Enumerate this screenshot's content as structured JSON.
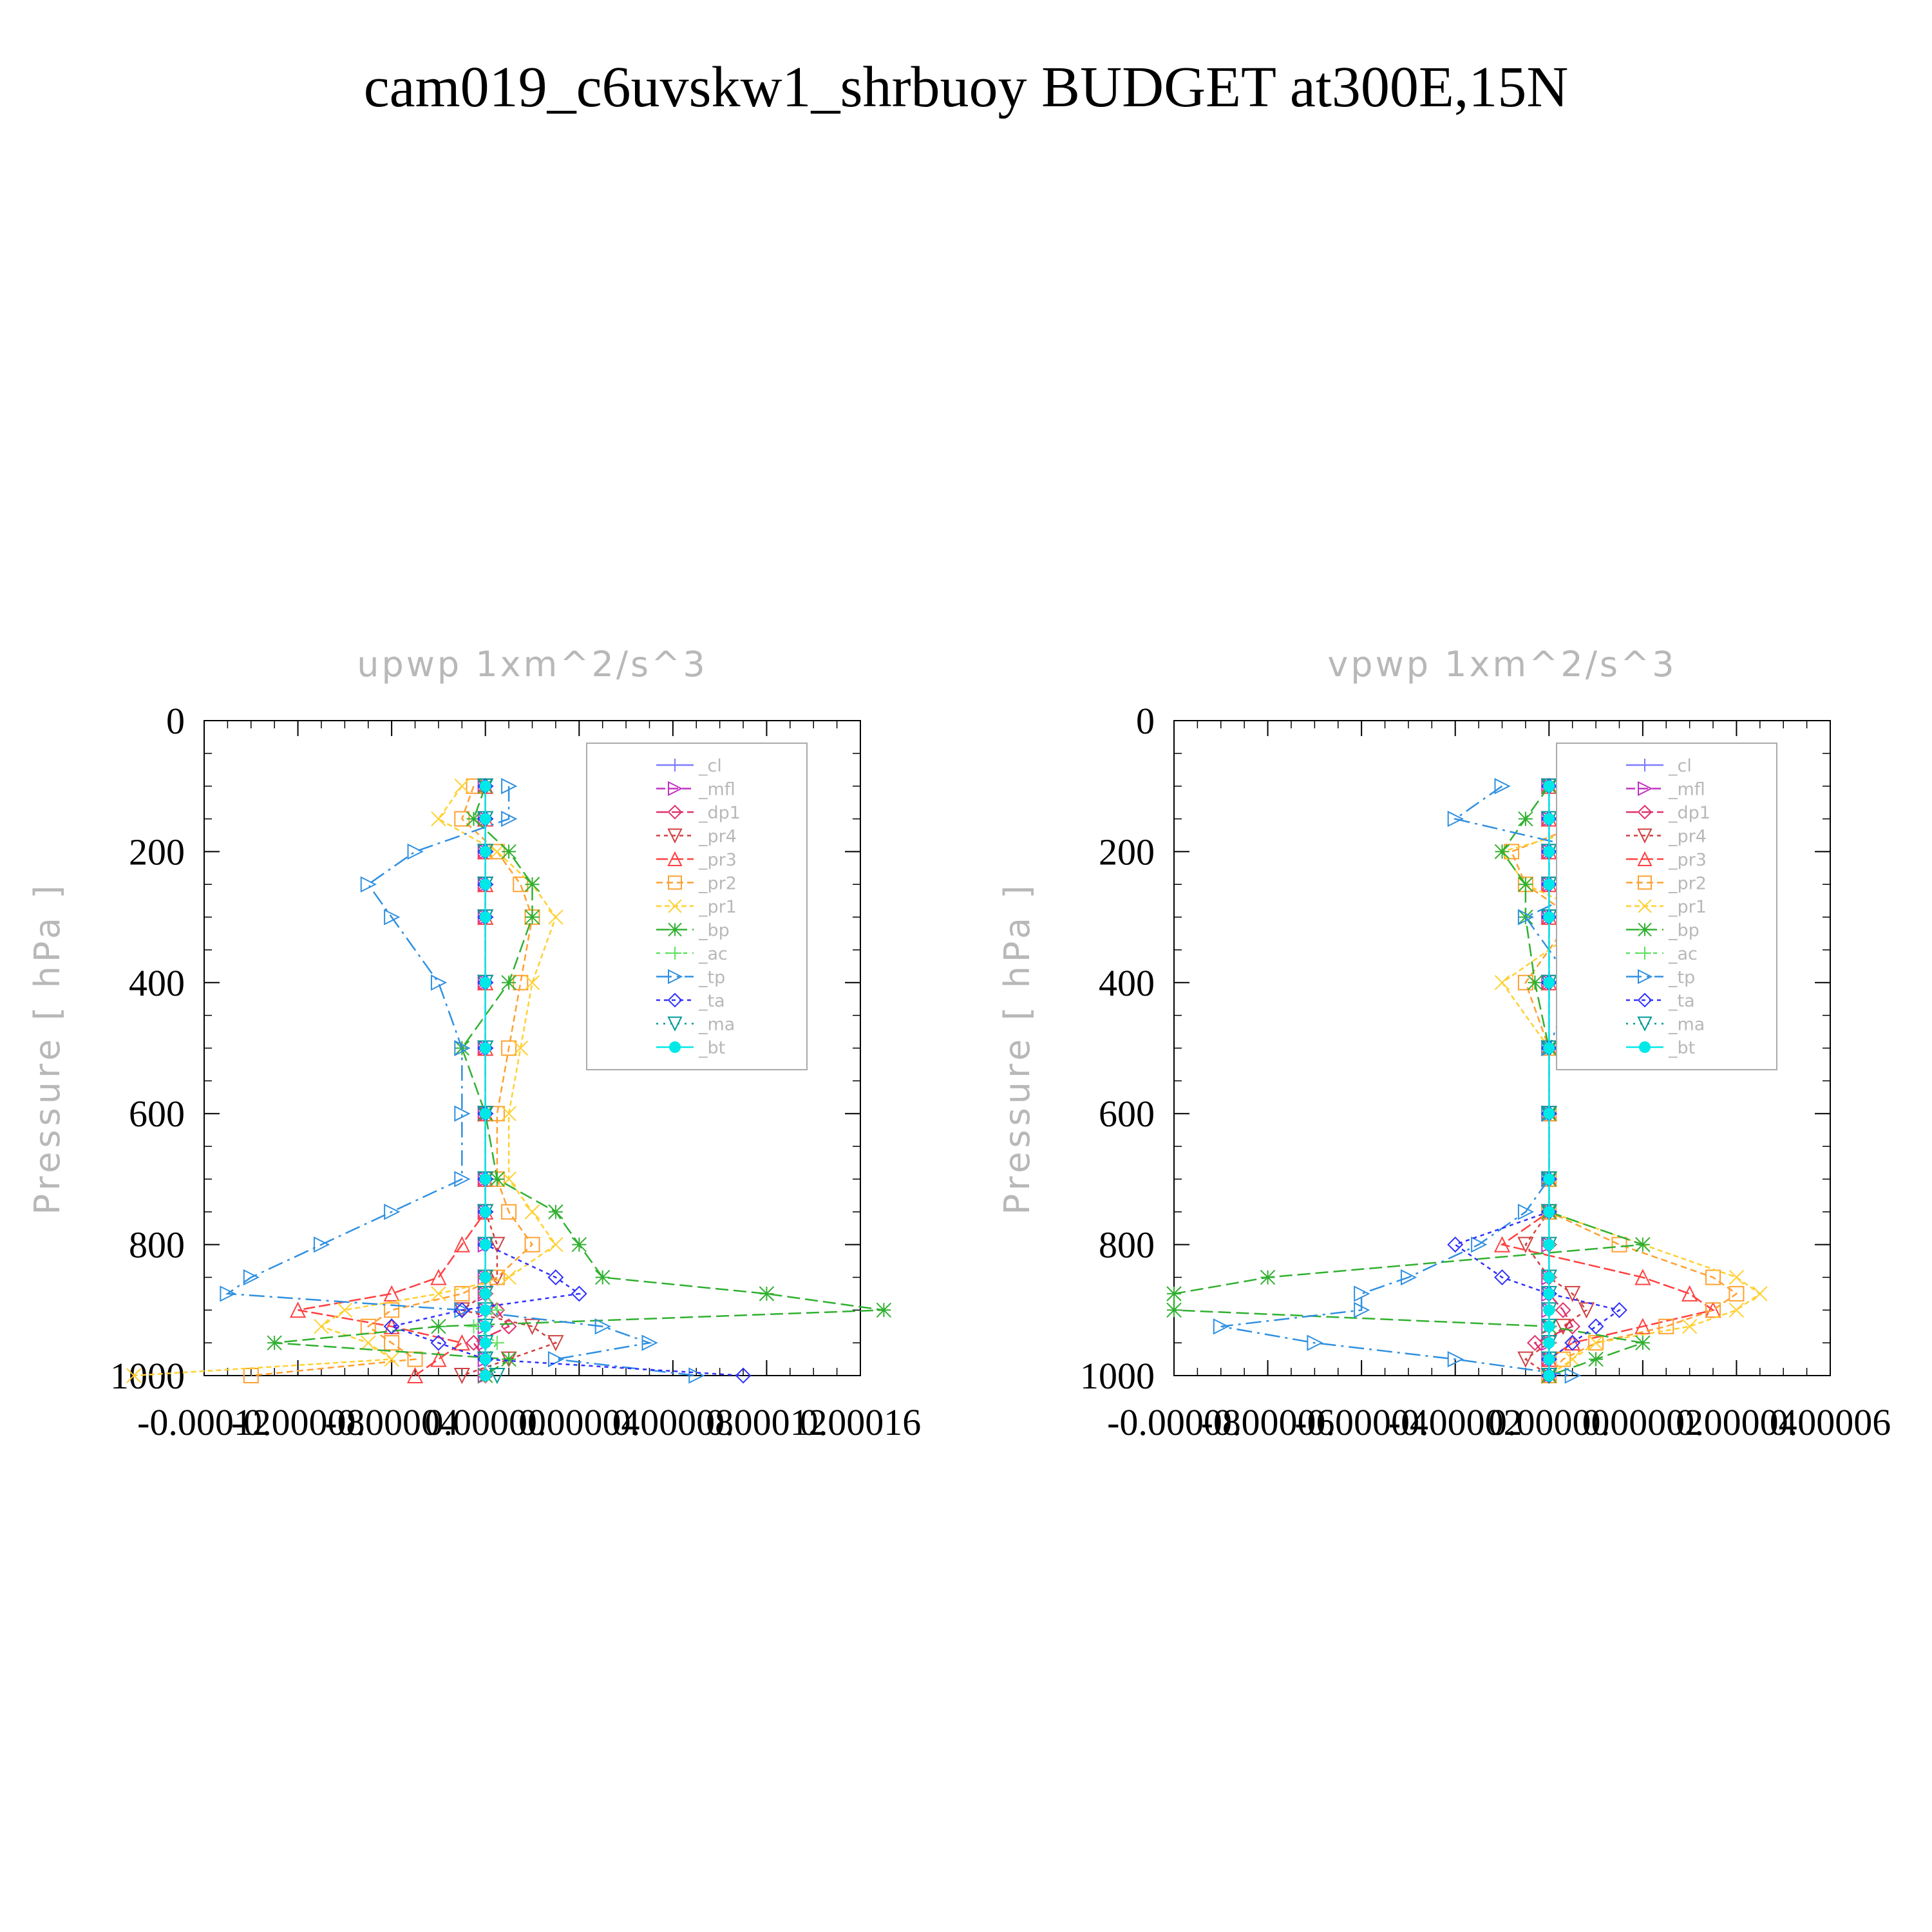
{
  "title": "cam019_c6uvskw1_shrbuoy  BUDGET at300E,15N",
  "chart_data": [
    {
      "type": "line",
      "title": "upwp   1xm^2/s^3",
      "y_label": "Pressure [ hPa ]",
      "y": [
        100,
        150,
        200,
        250,
        300,
        400,
        500,
        600,
        700,
        750,
        800,
        850,
        875,
        900,
        925,
        950,
        975,
        1000
      ],
      "ylim": [
        1000,
        0
      ],
      "yticks": [
        0,
        200,
        400,
        600,
        800,
        1000
      ],
      "xlim": [
        -0.00012,
        0.00016
      ],
      "xticks": [
        -0.00012,
        -8e-05,
        -4e-05,
        {
          "value": 0,
          "label": "0.00000"
        },
        4e-05,
        8e-05,
        0.00012,
        0.00016
      ],
      "legend": "upper right",
      "series": [
        {
          "name": "_cl",
          "color": "#7b7bff",
          "values": [
            0,
            0,
            0,
            0,
            0,
            0,
            0,
            0,
            0,
            0,
            0,
            0,
            0,
            0,
            0,
            0,
            0,
            0
          ]
        },
        {
          "name": "_mfl",
          "color": "#c030c0",
          "values": [
            0,
            0,
            0,
            0,
            0,
            0,
            0,
            0,
            0,
            0,
            0,
            0,
            0,
            0,
            0,
            0,
            0,
            0
          ]
        },
        {
          "name": "_dp1",
          "color": "#e0306a",
          "values": [
            0,
            0,
            0,
            0,
            0,
            0,
            0,
            0,
            0,
            0,
            0,
            0,
            0,
            5e-06,
            1e-05,
            -5e-06,
            0,
            0
          ]
        },
        {
          "name": "_pr4",
          "color": "#d04040",
          "values": [
            0,
            0,
            0,
            0,
            0,
            0,
            0,
            0,
            0,
            0,
            5e-06,
            5e-06,
            0,
            -1e-05,
            2e-05,
            3e-05,
            1e-05,
            -1e-05
          ]
        },
        {
          "name": "_pr3",
          "color": "#ff4040",
          "values": [
            0,
            0,
            0,
            0,
            0,
            0,
            0,
            0,
            0,
            0,
            -1e-05,
            -2e-05,
            -4e-05,
            -8e-05,
            -4e-05,
            -1e-05,
            -2e-05,
            -3e-05
          ]
        },
        {
          "name": "_pr2",
          "color": "#ffa030",
          "values": [
            -5e-06,
            -1e-05,
            5e-06,
            1.5e-05,
            2e-05,
            1.5e-05,
            1e-05,
            5e-06,
            5e-06,
            1e-05,
            2e-05,
            5e-06,
            -1e-05,
            -4e-05,
            -5e-05,
            -4e-05,
            -3e-05,
            -0.0001
          ]
        },
        {
          "name": "_pr1",
          "color": "#ffd030",
          "values": [
            -1e-05,
            -2e-05,
            5e-06,
            2e-05,
            3e-05,
            2e-05,
            1.5e-05,
            1e-05,
            1e-05,
            2e-05,
            3e-05,
            1e-05,
            -2e-05,
            -6e-05,
            -7e-05,
            -5e-05,
            -4e-05,
            -0.00015
          ]
        },
        {
          "name": "_bp",
          "color": "#30b030",
          "values": [
            0,
            -5e-06,
            1e-05,
            2e-05,
            2e-05,
            1e-05,
            -1e-05,
            0,
            5e-06,
            3e-05,
            4e-05,
            5e-05,
            0.00012,
            0.00017,
            -2e-05,
            -9e-05,
            1e-05,
            0
          ]
        },
        {
          "name": "_ac",
          "color": "#60e060",
          "values": [
            0,
            0,
            0,
            0,
            0,
            0,
            0,
            0,
            0,
            0,
            0,
            0,
            0,
            5e-06,
            -5e-06,
            5e-06,
            0,
            0
          ]
        },
        {
          "name": "_tp",
          "color": "#3090e0",
          "values": [
            1e-05,
            1e-05,
            -3e-05,
            -5e-05,
            -4e-05,
            -2e-05,
            -1e-05,
            -1e-05,
            -1e-05,
            -4e-05,
            -7e-05,
            -0.0001,
            -0.00011,
            -1e-05,
            5e-05,
            7e-05,
            3e-05,
            9e-05
          ]
        },
        {
          "name": "_ta",
          "color": "#3030ff",
          "values": [
            0,
            0,
            0,
            0,
            0,
            0,
            0,
            0,
            0,
            0,
            0,
            3e-05,
            4e-05,
            -1e-05,
            -4e-05,
            -2e-05,
            0,
            0.00011
          ]
        },
        {
          "name": "_ma",
          "color": "#009a9a",
          "values": [
            0,
            0,
            0,
            0,
            0,
            0,
            0,
            0,
            0,
            0,
            0,
            0,
            0,
            0,
            0,
            0,
            0,
            5e-06
          ]
        },
        {
          "name": "_bt",
          "color": "#00e8e8",
          "values": [
            0,
            0,
            0,
            0,
            0,
            0,
            0,
            0,
            0,
            0,
            0,
            0,
            0,
            0,
            0,
            0,
            0,
            0
          ]
        }
      ]
    },
    {
      "type": "line",
      "title": "vpwp   1xm^2/s^3",
      "y_label": "Pressure [ hPa ]",
      "y": [
        100,
        150,
        200,
        250,
        300,
        400,
        500,
        600,
        700,
        750,
        800,
        850,
        875,
        900,
        925,
        950,
        975,
        1000
      ],
      "ylim": [
        1000,
        0
      ],
      "yticks": [
        0,
        200,
        400,
        600,
        800,
        1000
      ],
      "xlim": [
        -8e-05,
        6e-05
      ],
      "xticks": [
        -8e-05,
        -6e-05,
        -4e-05,
        -2e-05,
        {
          "value": 0,
          "label": "0.00000"
        },
        2e-05,
        4e-05,
        6e-05
      ],
      "legend": "upper right",
      "series": [
        {
          "name": "_cl",
          "color": "#7b7bff",
          "values": [
            0,
            0,
            0,
            0,
            0,
            0,
            0,
            0,
            0,
            0,
            0,
            0,
            0,
            0,
            0,
            0,
            0,
            0
          ]
        },
        {
          "name": "_mfl",
          "color": "#c030c0",
          "values": [
            0,
            0,
            0,
            0,
            0,
            0,
            0,
            0,
            0,
            0,
            0,
            0,
            0,
            0,
            0,
            0,
            0,
            0
          ]
        },
        {
          "name": "_dp1",
          "color": "#e0306a",
          "values": [
            0,
            0,
            0,
            0,
            0,
            0,
            0,
            0,
            0,
            0,
            0,
            0,
            0,
            3e-06,
            5e-06,
            -3e-06,
            0,
            0
          ]
        },
        {
          "name": "_pr4",
          "color": "#d04040",
          "values": [
            0,
            0,
            0,
            0,
            0,
            0,
            0,
            0,
            0,
            0,
            -5e-06,
            0,
            5e-06,
            8e-06,
            3e-06,
            0,
            -5e-06,
            0
          ]
        },
        {
          "name": "_pr3",
          "color": "#ff4040",
          "values": [
            0,
            0,
            0,
            0,
            0,
            0,
            0,
            0,
            0,
            0,
            -1e-05,
            2e-05,
            3e-05,
            3.5e-05,
            2e-05,
            5e-06,
            0,
            0
          ]
        },
        {
          "name": "_pr2",
          "color": "#ffa030",
          "values": [
            5e-06,
            1e-05,
            -8e-06,
            -5e-06,
            5e-06,
            -5e-06,
            0,
            0,
            0,
            0,
            1.5e-05,
            3.5e-05,
            4e-05,
            3.5e-05,
            2.5e-05,
            1e-05,
            3e-06,
            0
          ]
        },
        {
          "name": "_pr1",
          "color": "#ffd030",
          "values": [
            1e-05,
            1.5e-05,
            -1e-05,
            -5e-06,
            1e-05,
            -1e-05,
            0,
            0,
            0,
            0,
            2e-05,
            4e-05,
            4.5e-05,
            4e-05,
            3e-05,
            1e-05,
            5e-06,
            0
          ]
        },
        {
          "name": "_bp",
          "color": "#30b030",
          "values": [
            0,
            -5e-06,
            -1e-05,
            -5e-06,
            -5e-06,
            -3e-06,
            0,
            0,
            0,
            0,
            2e-05,
            -6e-05,
            -8e-05,
            -8e-05,
            0,
            2e-05,
            1e-05,
            0
          ]
        },
        {
          "name": "_ac",
          "color": "#60e060",
          "values": [
            0,
            0,
            0,
            0,
            0,
            0,
            0,
            0,
            0,
            0,
            0,
            0,
            0,
            0,
            0,
            0,
            0,
            0
          ]
        },
        {
          "name": "_tp",
          "color": "#3090e0",
          "values": [
            -1e-05,
            -2e-05,
            1e-05,
            1e-05,
            -5e-06,
            5e-06,
            0,
            0,
            0,
            -5e-06,
            -1.5e-05,
            -3e-05,
            -4e-05,
            -4e-05,
            -7e-05,
            -5e-05,
            -2e-05,
            5e-06
          ]
        },
        {
          "name": "_ta",
          "color": "#3030ff",
          "values": [
            0,
            0,
            0,
            0,
            0,
            0,
            0,
            0,
            0,
            0,
            -2e-05,
            -1e-05,
            0,
            1.5e-05,
            1e-05,
            5e-06,
            0,
            0
          ]
        },
        {
          "name": "_ma",
          "color": "#009a9a",
          "values": [
            0,
            0,
            0,
            0,
            0,
            0,
            0,
            0,
            0,
            0,
            0,
            0,
            0,
            0,
            0,
            0,
            0,
            0
          ]
        },
        {
          "name": "_bt",
          "color": "#00e8e8",
          "values": [
            0,
            0,
            0,
            0,
            0,
            0,
            0,
            0,
            0,
            0,
            0,
            0,
            0,
            0,
            0,
            0,
            0,
            0
          ]
        }
      ]
    }
  ]
}
